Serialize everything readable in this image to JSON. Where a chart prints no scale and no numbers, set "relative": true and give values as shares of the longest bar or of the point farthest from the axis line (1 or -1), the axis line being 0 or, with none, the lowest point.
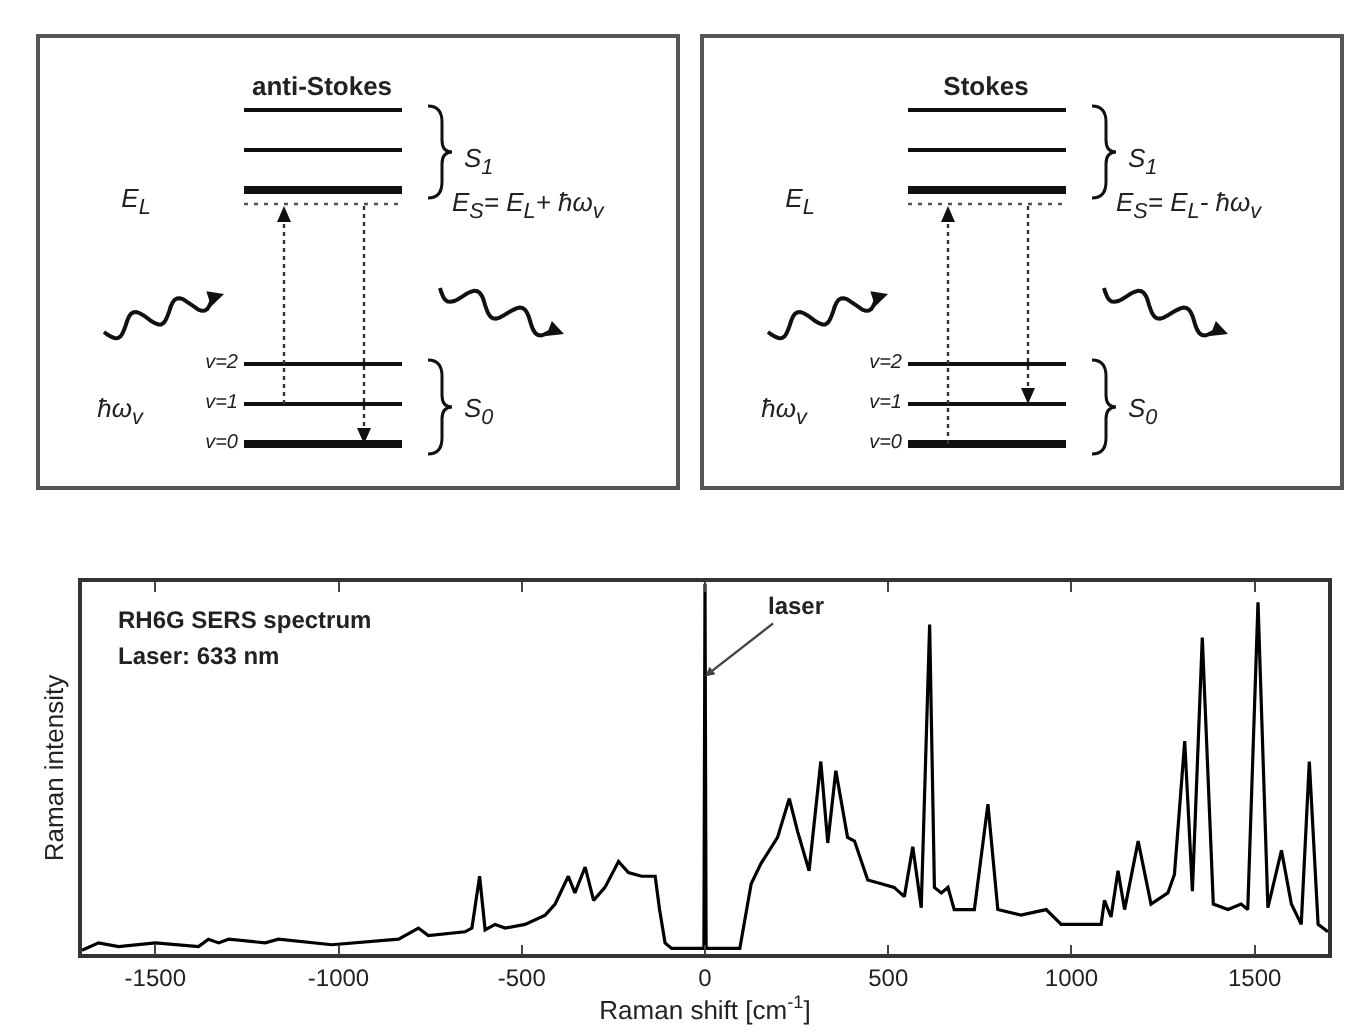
{
  "chart_data": [
    {
      "type": "other",
      "title": "anti-Stokes",
      "annotations": [
        "S$_{1}$",
        "E$_{L}$",
        "E$_{S}$= E$_{L}$+ ħω$_{v}$",
        "v=2",
        "v=1",
        "v=0",
        "ħω$_{v}$",
        "S$_{0}$"
      ]
    },
    {
      "type": "other",
      "title": "Stokes",
      "annotations": [
        "S$_{1}$",
        "E$_{L}$",
        "E$_{S}$= E$_{L}$- ħω$_{v}$",
        "v=2",
        "v=1",
        "v=0",
        "ħω$_{v}$",
        "S$_{0}$"
      ]
    },
    {
      "type": "line",
      "xlabel": "Raman shift [cm$^{-1}$]",
      "ylabel": "Raman intensity",
      "relative": true,
      "color": "#000000",
      "xlim": [
        -1700,
        1700
      ],
      "xticks": [
        -1500,
        -1000,
        -500,
        0,
        500,
        1000,
        1500
      ],
      "annotations": [
        "RH6G SERS spectrum",
        "Laser: 633 nm",
        {
          "text": "laser",
          "x": 0,
          "y": 0.75
        }
      ],
      "x": [
        -1700,
        -1655,
        -1600,
        -1500,
        -1382,
        -1355,
        -1327,
        -1300,
        -1200,
        -1164,
        -1018,
        -836,
        -782,
        -755,
        -655,
        -636,
        -615,
        -600,
        -573,
        -545,
        -491,
        -436,
        -409,
        -373,
        -355,
        -327,
        -304,
        -273,
        -236,
        -209,
        -173,
        -136,
        -124,
        -109,
        -91,
        -15,
        -3,
        0,
        3,
        15,
        95,
        126,
        153,
        198,
        230,
        253,
        284,
        316,
        335,
        357,
        389,
        408,
        444,
        481,
        516,
        544,
        567,
        590,
        613,
        626,
        645,
        663,
        680,
        735,
        772,
        799,
        862,
        931,
        972,
        1081,
        1090,
        1108,
        1127,
        1145,
        1182,
        1217,
        1263,
        1281,
        1309,
        1330,
        1357,
        1387,
        1427,
        1463,
        1481,
        1509,
        1536,
        1573,
        1600,
        1627,
        1649,
        1673,
        1700
      ],
      "values": [
        0.01,
        0.03,
        0.02,
        0.03,
        0.02,
        0.04,
        0.03,
        0.04,
        0.03,
        0.04,
        0.025,
        0.04,
        0.07,
        0.05,
        0.06,
        0.07,
        0.21,
        0.065,
        0.08,
        0.07,
        0.08,
        0.105,
        0.135,
        0.21,
        0.165,
        0.235,
        0.145,
        0.18,
        0.25,
        0.22,
        0.21,
        0.21,
        0.12,
        0.03,
        0.015,
        0.015,
        0.015,
        1.0,
        0.015,
        0.015,
        0.015,
        0.19,
        0.245,
        0.315,
        0.42,
        0.33,
        0.225,
        0.52,
        0.3,
        0.495,
        0.315,
        0.305,
        0.2,
        0.19,
        0.18,
        0.155,
        0.29,
        0.125,
        0.89,
        0.18,
        0.165,
        0.18,
        0.12,
        0.12,
        0.405,
        0.12,
        0.105,
        0.12,
        0.08,
        0.08,
        0.145,
        0.1,
        0.225,
        0.12,
        0.305,
        0.135,
        0.165,
        0.215,
        0.575,
        0.17,
        0.855,
        0.135,
        0.12,
        0.135,
        0.12,
        0.95,
        0.125,
        0.28,
        0.135,
        0.08,
        0.52,
        0.08,
        0.06
      ]
    }
  ]
}
